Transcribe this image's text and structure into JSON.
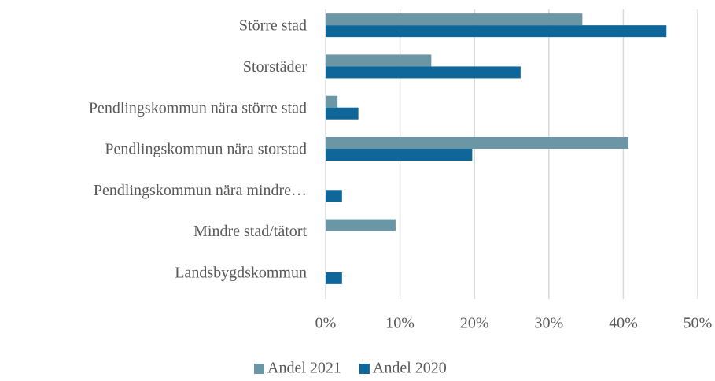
{
  "chart_data": {
    "type": "bar",
    "orientation": "horizontal",
    "categories": [
      "Större stad",
      "Storstäder",
      "Pendlingskommun nära större stad",
      "Pendlingskommun nära storstad",
      "Pendlingskommun nära mindre…",
      "Mindre stad/tätort",
      "Landsbygdskommun"
    ],
    "series": [
      {
        "name": "Andel 2021",
        "color": "#6b96a6",
        "values": [
          34.5,
          14.2,
          1.6,
          40.7,
          0,
          9.4,
          0
        ]
      },
      {
        "name": "Andel 2020",
        "color": "#0f6698",
        "values": [
          45.8,
          26.2,
          4.4,
          19.7,
          2.2,
          0,
          2.2
        ]
      }
    ],
    "xlim": [
      0,
      50
    ],
    "xticks": [
      {
        "value": 0,
        "label": "0%"
      },
      {
        "value": 10,
        "label": "10%"
      },
      {
        "value": 20,
        "label": "20%"
      },
      {
        "value": 30,
        "label": "30%"
      },
      {
        "value": 40,
        "label": "40%"
      },
      {
        "value": 50,
        "label": "50%"
      }
    ],
    "grid": true,
    "legend": "bottom"
  }
}
